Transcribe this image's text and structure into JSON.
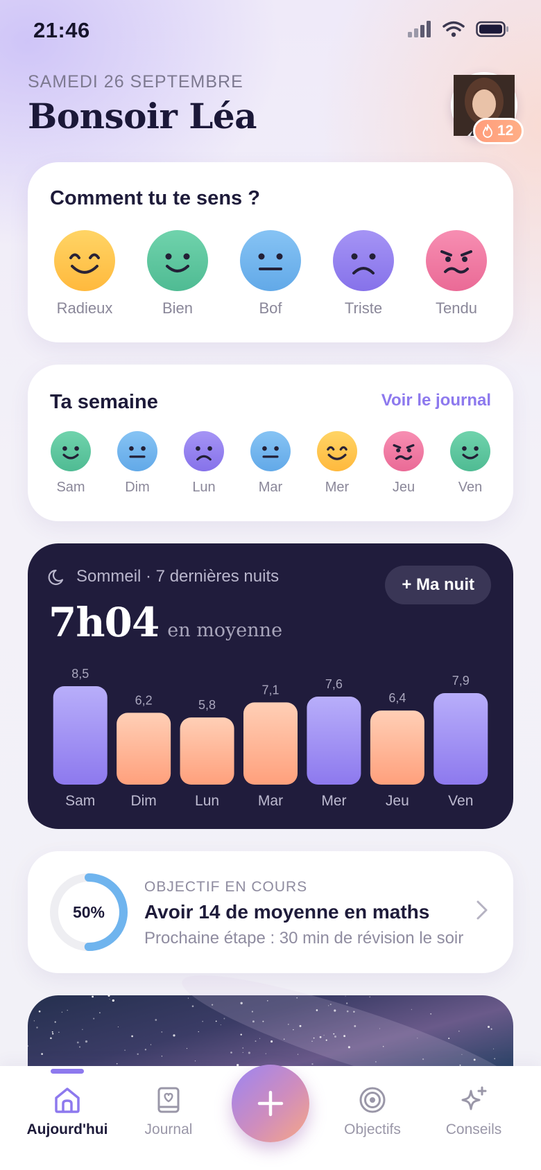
{
  "status_bar": {
    "time": "21:46"
  },
  "header": {
    "date": "SAMEDI 26 SEPTEMBRE",
    "greeting": "Bonsoir Léa",
    "streak_count": "12"
  },
  "mood_picker": {
    "title": "Comment tu te sens ?",
    "options": [
      {
        "label": "Radieux",
        "color": "#ffc24a"
      },
      {
        "label": "Bien",
        "color": "#5cc8a0"
      },
      {
        "label": "Bof",
        "color": "#6fb4ee"
      },
      {
        "label": "Triste",
        "color": "#8f7cef"
      },
      {
        "label": "Tendu",
        "color": "#f177a1"
      }
    ]
  },
  "week": {
    "title": "Ta semaine",
    "link_label": "Voir le journal",
    "days": [
      {
        "day": "Sam",
        "mood": "Bien"
      },
      {
        "day": "Dim",
        "mood": "Bof"
      },
      {
        "day": "Lun",
        "mood": "Triste"
      },
      {
        "day": "Mar",
        "mood": "Bof"
      },
      {
        "day": "Mer",
        "mood": "Radieux"
      },
      {
        "day": "Jeu",
        "mood": "Tendu"
      },
      {
        "day": "Ven",
        "mood": "Bien"
      }
    ]
  },
  "sleep": {
    "subtitle": "Sommeil · 7 dernières nuits",
    "add_button": "+ Ma nuit",
    "average": "7h04",
    "average_caption": "en moyenne",
    "colors": {
      "good": "#8f7cef",
      "low": "#ffa884"
    }
  },
  "chart_data": {
    "type": "bar",
    "categories": [
      "Sam",
      "Dim",
      "Lun",
      "Mar",
      "Mer",
      "Jeu",
      "Ven"
    ],
    "values": [
      8.5,
      6.2,
      5.8,
      7.1,
      7.6,
      6.4,
      7.9
    ],
    "value_labels": [
      "8,5",
      "6,2",
      "5,8",
      "7,1",
      "7,6",
      "6,4",
      "7,9"
    ],
    "highlight": [
      "good",
      "low",
      "low",
      "low",
      "good",
      "low",
      "good"
    ],
    "title": "",
    "xlabel": "",
    "ylabel": "",
    "ylim": [
      0,
      10
    ],
    "grid": false
  },
  "goal": {
    "kicker": "OBJECTIF EN COURS",
    "title": "Avoir 14 de moyenne en maths",
    "next_step": "Prochaine étape : 30 min de révision le soir",
    "progress_label": "50%",
    "progress": 0.5,
    "ring_color": "#6fb4ee"
  },
  "nav": {
    "items": [
      {
        "label": "Aujourd'hui",
        "icon": "home-icon"
      },
      {
        "label": "Journal",
        "icon": "journal-icon"
      },
      {
        "label": "Objectifs",
        "icon": "target-icon"
      },
      {
        "label": "Conseils",
        "icon": "sparkle-icon"
      }
    ],
    "fab_icon": "plus-icon"
  }
}
